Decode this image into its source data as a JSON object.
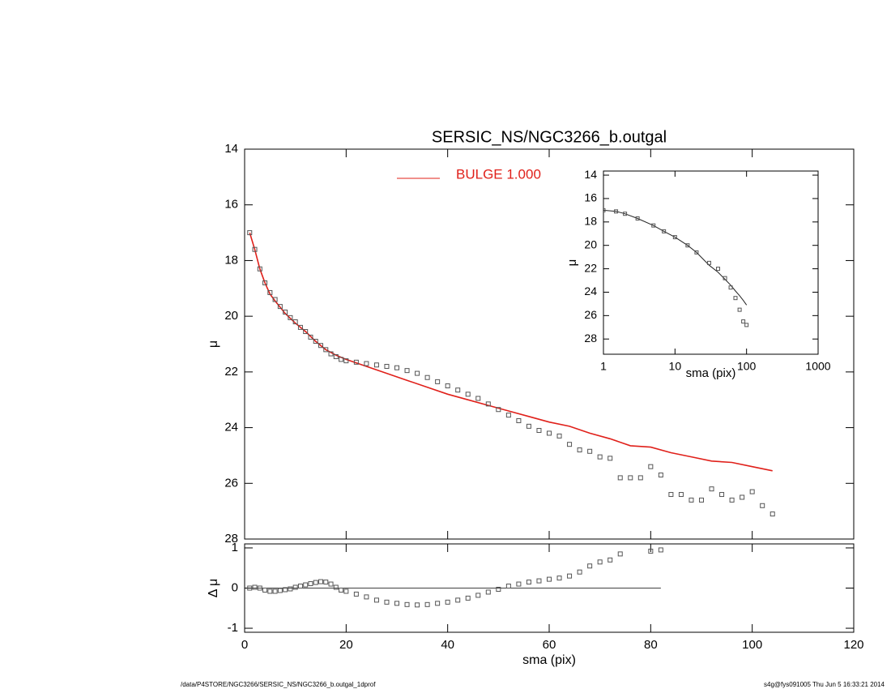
{
  "chart_data": [
    {
      "type": "scatter",
      "title": "SERSIC_NS/NGC3266_b.outgal",
      "y_label": "μ",
      "xlim": [
        0,
        120
      ],
      "ylim": [
        14,
        28
      ],
      "y_inverted": true,
      "yticks": [
        14,
        16,
        18,
        20,
        22,
        24,
        26,
        28
      ],
      "marker_color": "#555555",
      "x": [
        1,
        2,
        3,
        4,
        5,
        6,
        7,
        8,
        9,
        10,
        11,
        12,
        13,
        14,
        15,
        16,
        17,
        18,
        19,
        20,
        22,
        24,
        26,
        28,
        30,
        32,
        34,
        36,
        38,
        40,
        42,
        44,
        46,
        48,
        50,
        52,
        54,
        56,
        58,
        60,
        62,
        64,
        66,
        68,
        70,
        72,
        74,
        76,
        78,
        80,
        82,
        84,
        86,
        88,
        90,
        92,
        94,
        96,
        98,
        100,
        102,
        104
      ],
      "values": [
        17.0,
        17.6,
        18.3,
        18.8,
        19.15,
        19.4,
        19.65,
        19.85,
        20.05,
        20.2,
        20.4,
        20.55,
        20.75,
        20.9,
        21.05,
        21.2,
        21.35,
        21.45,
        21.55,
        21.6,
        21.65,
        21.7,
        21.75,
        21.8,
        21.85,
        21.95,
        22.05,
        22.2,
        22.35,
        22.5,
        22.65,
        22.8,
        22.95,
        23.15,
        23.35,
        23.55,
        23.75,
        23.95,
        24.1,
        24.2,
        24.3,
        24.6,
        24.8,
        24.85,
        25.05,
        25.1,
        25.8,
        25.8,
        25.8,
        25.4,
        25.7,
        26.4,
        26.4,
        26.6,
        26.6,
        26.2,
        26.4,
        26.6,
        26.5,
        26.3,
        26.8,
        27.1
      ],
      "model": {
        "name": "BULGE  1.000",
        "color": "#e0201a",
        "x": [
          1,
          2,
          3,
          4,
          5,
          6,
          8,
          10,
          12,
          14,
          16,
          18,
          20,
          24,
          28,
          32,
          36,
          40,
          44,
          48,
          52,
          56,
          60,
          64,
          68,
          72,
          76,
          80,
          84,
          88,
          92,
          96,
          100,
          104
        ],
        "values": [
          17.0,
          17.6,
          18.3,
          18.8,
          19.2,
          19.45,
          19.9,
          20.25,
          20.55,
          20.9,
          21.2,
          21.4,
          21.55,
          21.8,
          22.05,
          22.3,
          22.55,
          22.8,
          23.0,
          23.2,
          23.4,
          23.6,
          23.8,
          23.95,
          24.2,
          24.4,
          24.65,
          24.7,
          24.9,
          25.05,
          25.2,
          25.25,
          25.4,
          25.55
        ]
      }
    },
    {
      "type": "scatter",
      "x_label": "sma (pix)",
      "y_label": "Δ μ",
      "xlim": [
        0,
        120
      ],
      "xticks": [
        0,
        20,
        40,
        60,
        80,
        100,
        120
      ],
      "ylim": [
        -1.1,
        1.1
      ],
      "yticks": [
        -1,
        0,
        1
      ],
      "marker_color": "#555555",
      "x": [
        1,
        2,
        3,
        4,
        5,
        6,
        7,
        8,
        9,
        10,
        11,
        12,
        13,
        14,
        15,
        16,
        17,
        18,
        19,
        20,
        22,
        24,
        26,
        28,
        30,
        32,
        34,
        36,
        38,
        40,
        42,
        44,
        46,
        48,
        50,
        52,
        54,
        56,
        58,
        60,
        62,
        64,
        66,
        68,
        70,
        72,
        74,
        80,
        82
      ],
      "values": [
        0,
        0.02,
        0,
        -0.05,
        -0.08,
        -0.08,
        -0.06,
        -0.04,
        -0.02,
        0.02,
        0.05,
        0.08,
        0.11,
        0.14,
        0.16,
        0.15,
        0.1,
        0.02,
        -0.05,
        -0.08,
        -0.15,
        -0.22,
        -0.3,
        -0.35,
        -0.38,
        -0.41,
        -0.42,
        -0.41,
        -0.38,
        -0.35,
        -0.3,
        -0.25,
        -0.18,
        -0.1,
        -0.03,
        0.05,
        0.1,
        0.15,
        0.18,
        0.22,
        0.25,
        0.3,
        0.4,
        0.55,
        0.65,
        0.7,
        0.85,
        0.92,
        0.95
      ]
    },
    {
      "type": "scatter",
      "x_label": "sma (pix)",
      "y_label": "μ",
      "xlog": true,
      "xlim": [
        1,
        1000
      ],
      "xticks": [
        1,
        10,
        100,
        1000
      ],
      "ylim": [
        13.65,
        29.3
      ],
      "y_inverted": true,
      "yticks": [
        14,
        16,
        18,
        20,
        22,
        24,
        26,
        28
      ],
      "marker_color": "#555555",
      "x": [
        1,
        1.5,
        2,
        3,
        5,
        7,
        10,
        15,
        20,
        30,
        40,
        50,
        60,
        70,
        80,
        90,
        100
      ],
      "values": [
        17.0,
        17.1,
        17.3,
        17.7,
        18.3,
        18.8,
        19.3,
        20.0,
        20.6,
        21.5,
        22.0,
        22.8,
        23.6,
        24.5,
        25.5,
        26.5,
        26.8
      ],
      "model": {
        "color": "#222222",
        "x": [
          1,
          1.5,
          2,
          3,
          5,
          7,
          10,
          15,
          20,
          30,
          40,
          50,
          60,
          70,
          80,
          90,
          100
        ],
        "values": [
          17.0,
          17.1,
          17.3,
          17.7,
          18.3,
          18.8,
          19.3,
          20.0,
          20.6,
          21.7,
          22.3,
          22.9,
          23.4,
          23.9,
          24.3,
          24.7,
          25.1
        ]
      }
    }
  ],
  "footer": {
    "left": "/data/P4STORE/NGC3266/SERSIC_NS/NGC3266_b.outgal_1dprof",
    "right": "s4g@fys091005  Thu Jun  5 16:33:21 2014"
  }
}
